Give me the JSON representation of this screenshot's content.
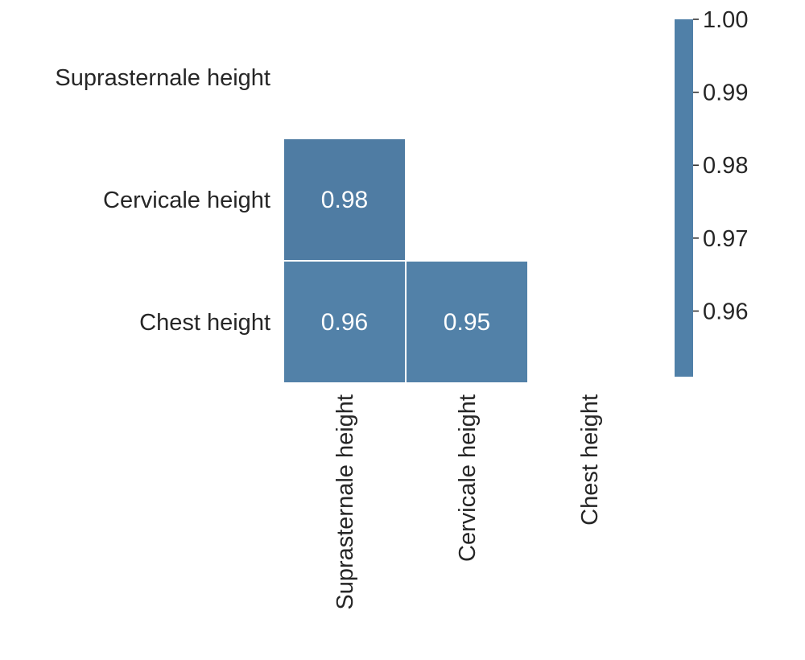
{
  "chart_data": {
    "type": "heatmap",
    "title": "",
    "rows": [
      "Suprasternale height",
      "Cervicale height",
      "Chest height"
    ],
    "columns": [
      "Suprasternale height",
      "Cervicale height",
      "Chest height"
    ],
    "mask": "upper-triangle-including-diagonal",
    "cells": [
      {
        "row": 1,
        "col": 0,
        "value": 0.98,
        "label": "0.98"
      },
      {
        "row": 2,
        "col": 0,
        "value": 0.96,
        "label": "0.96"
      },
      {
        "row": 2,
        "col": 1,
        "value": 0.95,
        "label": "0.95"
      }
    ],
    "colorbar": {
      "range": [
        0.951,
        1.0
      ],
      "ticks": [
        {
          "value": 1.0,
          "label": "1.00"
        },
        {
          "value": 0.99,
          "label": "0.99"
        },
        {
          "value": 0.98,
          "label": "0.98"
        },
        {
          "value": 0.97,
          "label": "0.97"
        },
        {
          "value": 0.96,
          "label": "0.96"
        }
      ],
      "placement": "right"
    },
    "colors": {
      "cell_fill": "#4f7ca3",
      "cell_fill_alt": "#5281a8",
      "cell_border": "#ffffff",
      "colorbar_fill": "#5080a8",
      "text_dark": "#262626",
      "text_light": "#ffffff"
    }
  }
}
